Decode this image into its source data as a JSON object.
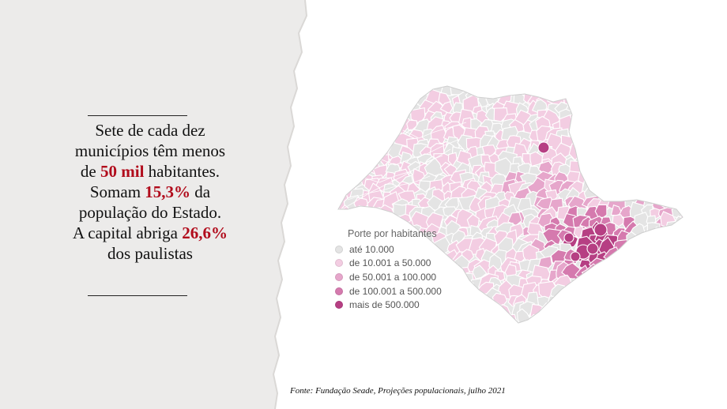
{
  "headline": {
    "line1": "Sete de cada dez",
    "line2": "municípios têm menos",
    "line3_pre": "de ",
    "line3_hl": "50 mil",
    "line3_post": " habitantes.",
    "line4_pre": "Somam ",
    "line4_hl": "15,3%",
    "line4_post": " da",
    "line5": "população do Estado.",
    "line6_pre": "A capital abriga ",
    "line6_hl": "26,6%",
    "line7": "dos paulistas"
  },
  "legend": {
    "title": "Porte por habitantes",
    "items": [
      {
        "label": "até 10.000",
        "color": "#e4e4e4"
      },
      {
        "label": "de 10.001 a 50.000",
        "color": "#f3cde2"
      },
      {
        "label": "de 50.001 a 100.000",
        "color": "#e6a6cb"
      },
      {
        "label": "de 100.001 a 500.000",
        "color": "#d57aae"
      },
      {
        "label": "mais de 500.000",
        "color": "#b63f83"
      }
    ]
  },
  "source": "Fonte: Fundação Seade, Projeções populacionais, julho 2021",
  "colors": {
    "highlight": "#b10c1c",
    "paper": "#ecebea"
  }
}
